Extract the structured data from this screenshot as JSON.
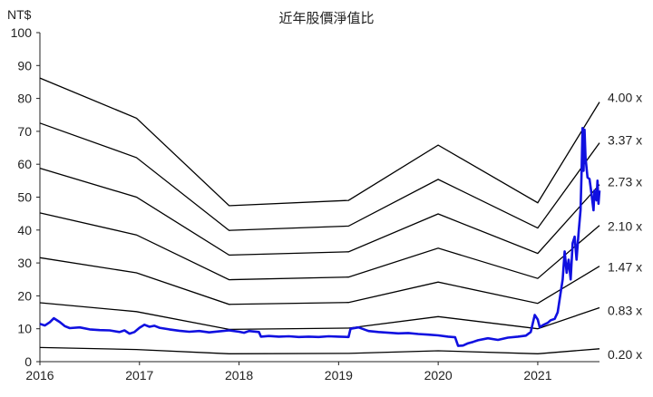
{
  "chart_data": {
    "type": "line",
    "title": "近年股價淨值比",
    "ylabel": "NT$",
    "xlabel": "",
    "ylim": [
      0,
      100
    ],
    "xlim": [
      2016.0,
      2021.62
    ],
    "yticks": [
      0,
      10,
      20,
      30,
      40,
      50,
      60,
      70,
      80,
      90,
      100
    ],
    "xticks": [
      2016,
      2017,
      2018,
      2019,
      2020,
      2021
    ],
    "grid": false,
    "legend": "none",
    "bands": [
      {
        "label": "4.00 x",
        "points": [
          [
            2016.0,
            86.2
          ],
          [
            2016.97,
            74.0
          ],
          [
            2017.9,
            47.4
          ],
          [
            2019.1,
            49.0
          ],
          [
            2020.0,
            65.8
          ],
          [
            2021.0,
            48.3
          ],
          [
            2021.62,
            78.9
          ]
        ]
      },
      {
        "label": "3.37 x",
        "points": [
          [
            2016.0,
            72.5
          ],
          [
            2016.97,
            62.0
          ],
          [
            2017.9,
            39.9
          ],
          [
            2019.1,
            41.2
          ],
          [
            2020.0,
            55.4
          ],
          [
            2021.0,
            40.6
          ],
          [
            2021.62,
            66.5
          ]
        ]
      },
      {
        "label": "2.73 x",
        "points": [
          [
            2016.0,
            58.8
          ],
          [
            2016.97,
            50.0
          ],
          [
            2017.9,
            32.4
          ],
          [
            2019.1,
            33.4
          ],
          [
            2020.0,
            44.9
          ],
          [
            2021.0,
            32.9
          ],
          [
            2021.62,
            53.8
          ]
        ]
      },
      {
        "label": "2.10 x",
        "points": [
          [
            2016.0,
            45.2
          ],
          [
            2016.97,
            38.5
          ],
          [
            2017.9,
            24.9
          ],
          [
            2019.1,
            25.7
          ],
          [
            2020.0,
            34.5
          ],
          [
            2021.0,
            25.3
          ],
          [
            2021.62,
            41.4
          ]
        ]
      },
      {
        "label": "1.47 x",
        "points": [
          [
            2016.0,
            31.6
          ],
          [
            2016.97,
            27.0
          ],
          [
            2017.9,
            17.4
          ],
          [
            2019.1,
            18.0
          ],
          [
            2020.0,
            24.2
          ],
          [
            2021.0,
            17.7
          ],
          [
            2021.62,
            29.0
          ]
        ]
      },
      {
        "label": "0.83 x",
        "points": [
          [
            2016.0,
            17.9
          ],
          [
            2016.97,
            15.2
          ],
          [
            2017.9,
            9.8
          ],
          [
            2019.1,
            10.2
          ],
          [
            2020.0,
            13.7
          ],
          [
            2021.0,
            10.0
          ],
          [
            2021.62,
            16.4
          ]
        ]
      },
      {
        "label": "0.20 x",
        "points": [
          [
            2016.0,
            4.3
          ],
          [
            2016.97,
            3.7
          ],
          [
            2017.9,
            2.4
          ],
          [
            2019.1,
            2.5
          ],
          [
            2020.0,
            3.3
          ],
          [
            2021.0,
            2.4
          ],
          [
            2021.62,
            3.9
          ]
        ]
      }
    ],
    "price_series": {
      "color": "#1010e0",
      "points": [
        [
          2016.0,
          11.5
        ],
        [
          2016.05,
          11.0
        ],
        [
          2016.1,
          12.0
        ],
        [
          2016.14,
          13.2
        ],
        [
          2016.2,
          12.0
        ],
        [
          2016.25,
          10.8
        ],
        [
          2016.3,
          10.2
        ],
        [
          2016.4,
          10.4
        ],
        [
          2016.5,
          9.8
        ],
        [
          2016.6,
          9.6
        ],
        [
          2016.7,
          9.5
        ],
        [
          2016.8,
          9.0
        ],
        [
          2016.85,
          9.5
        ],
        [
          2016.9,
          8.5
        ],
        [
          2016.95,
          9.0
        ],
        [
          2017.0,
          10.3
        ],
        [
          2017.05,
          11.2
        ],
        [
          2017.1,
          10.6
        ],
        [
          2017.15,
          10.9
        ],
        [
          2017.2,
          10.3
        ],
        [
          2017.3,
          9.8
        ],
        [
          2017.4,
          9.4
        ],
        [
          2017.5,
          9.1
        ],
        [
          2017.6,
          9.3
        ],
        [
          2017.7,
          8.9
        ],
        [
          2017.8,
          9.2
        ],
        [
          2017.9,
          9.5
        ],
        [
          2018.0,
          9.1
        ],
        [
          2018.05,
          8.8
        ],
        [
          2018.1,
          9.3
        ],
        [
          2018.2,
          9.0
        ],
        [
          2018.22,
          7.6
        ],
        [
          2018.3,
          7.8
        ],
        [
          2018.4,
          7.6
        ],
        [
          2018.5,
          7.7
        ],
        [
          2018.6,
          7.5
        ],
        [
          2018.7,
          7.6
        ],
        [
          2018.8,
          7.5
        ],
        [
          2018.9,
          7.7
        ],
        [
          2019.0,
          7.6
        ],
        [
          2019.1,
          7.5
        ],
        [
          2019.12,
          10.0
        ],
        [
          2019.2,
          10.4
        ],
        [
          2019.3,
          9.3
        ],
        [
          2019.4,
          9.0
        ],
        [
          2019.5,
          8.8
        ],
        [
          2019.6,
          8.6
        ],
        [
          2019.7,
          8.7
        ],
        [
          2019.8,
          8.4
        ],
        [
          2019.9,
          8.2
        ],
        [
          2020.0,
          8.0
        ],
        [
          2020.1,
          7.6
        ],
        [
          2020.17,
          7.4
        ],
        [
          2020.2,
          4.8
        ],
        [
          2020.25,
          4.9
        ],
        [
          2020.3,
          5.6
        ],
        [
          2020.35,
          6.0
        ],
        [
          2020.4,
          6.5
        ],
        [
          2020.5,
          7.1
        ],
        [
          2020.6,
          6.6
        ],
        [
          2020.7,
          7.3
        ],
        [
          2020.8,
          7.6
        ],
        [
          2020.88,
          7.9
        ],
        [
          2020.93,
          9.0
        ],
        [
          2020.97,
          14.2
        ],
        [
          2021.0,
          12.8
        ],
        [
          2021.02,
          10.5
        ],
        [
          2021.06,
          11.2
        ],
        [
          2021.1,
          11.8
        ],
        [
          2021.13,
          12.6
        ],
        [
          2021.17,
          13.0
        ],
        [
          2021.2,
          15.0
        ],
        [
          2021.23,
          21.0
        ],
        [
          2021.25,
          25.0
        ],
        [
          2021.27,
          33.5
        ],
        [
          2021.29,
          27.0
        ],
        [
          2021.31,
          31.0
        ],
        [
          2021.33,
          25.0
        ],
        [
          2021.35,
          36.0
        ],
        [
          2021.37,
          38.0
        ],
        [
          2021.39,
          31.0
        ],
        [
          2021.41,
          39.0
        ],
        [
          2021.43,
          46.0
        ],
        [
          2021.44,
          57.0
        ],
        [
          2021.45,
          71.0
        ],
        [
          2021.46,
          58.0
        ],
        [
          2021.47,
          70.5
        ],
        [
          2021.48,
          62.0
        ],
        [
          2021.5,
          56.0
        ],
        [
          2021.52,
          55.5
        ],
        [
          2021.54,
          51.0
        ],
        [
          2021.56,
          46.0
        ],
        [
          2021.57,
          52.0
        ],
        [
          2021.59,
          49.0
        ],
        [
          2021.6,
          55.0
        ],
        [
          2021.61,
          48.0
        ],
        [
          2021.62,
          52.0
        ]
      ]
    }
  }
}
